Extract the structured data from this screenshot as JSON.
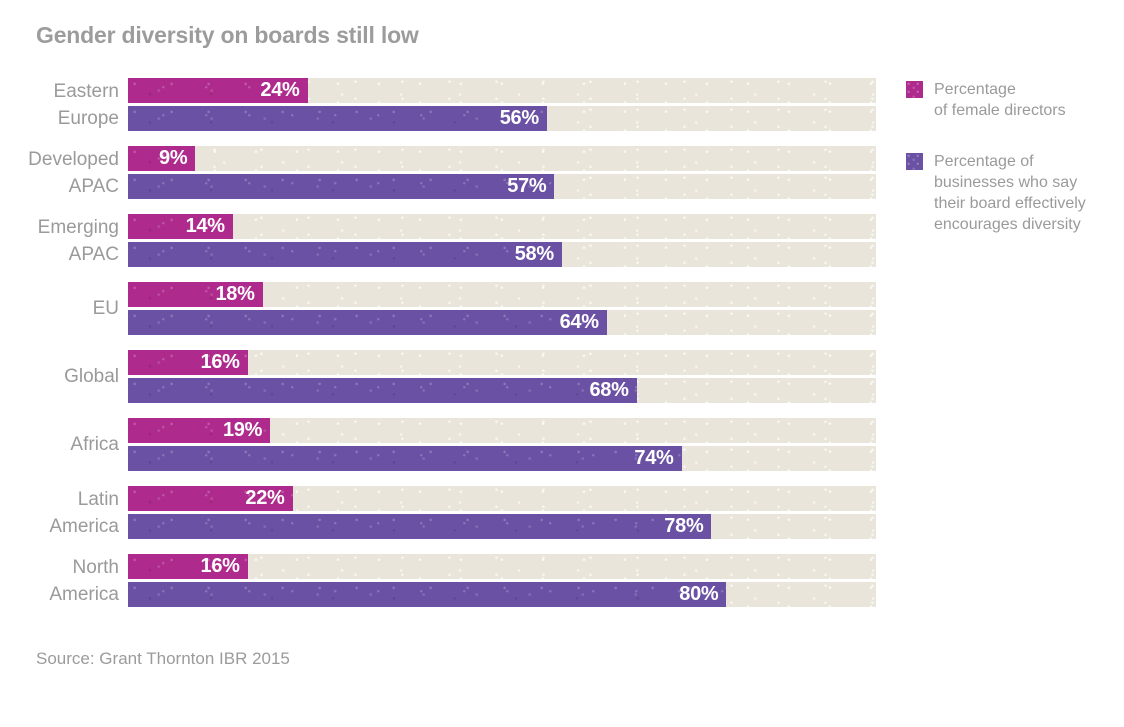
{
  "title": "Gender diversity on boards still low",
  "source": "Source: Grant Thornton IBR 2015",
  "colors": {
    "female_bar": "#ae2a8c",
    "board_bar": "#6a51a3",
    "track": "#e9e5da",
    "heading_text": "#9c9c9c",
    "label_text": "#9a9a9a",
    "value_text": "#ffffff",
    "background": "#ffffff"
  },
  "legend": {
    "items": [
      {
        "label": "Percentage\nof female directors",
        "color": "#ae2a8c"
      },
      {
        "label": "Percentage of\nbusinesses who say\ntheir board effectively\nencourages diversity",
        "color": "#6a51a3"
      }
    ]
  },
  "chart_data": {
    "type": "bar",
    "orientation": "horizontal",
    "title": "Gender diversity on boards still low",
    "categories": [
      "Eastern\nEurope",
      "Developed\nAPAC",
      "Emerging\nAPAC",
      "EU",
      "Global",
      "Africa",
      "Latin\nAmerica",
      "North\nAmerica"
    ],
    "series": [
      {
        "name": "Percentage of female directors",
        "color": "#ae2a8c",
        "values": [
          24,
          9,
          14,
          18,
          16,
          19,
          22,
          16
        ]
      },
      {
        "name": "Percentage of businesses who say their board effectively encourages diversity",
        "color": "#6a51a3",
        "values": [
          56,
          57,
          58,
          64,
          68,
          74,
          78,
          80
        ]
      }
    ],
    "value_suffix": "%",
    "value_labels": "inside-end",
    "xlim": [
      0,
      100
    ],
    "grid": false,
    "legend_position": "right"
  }
}
